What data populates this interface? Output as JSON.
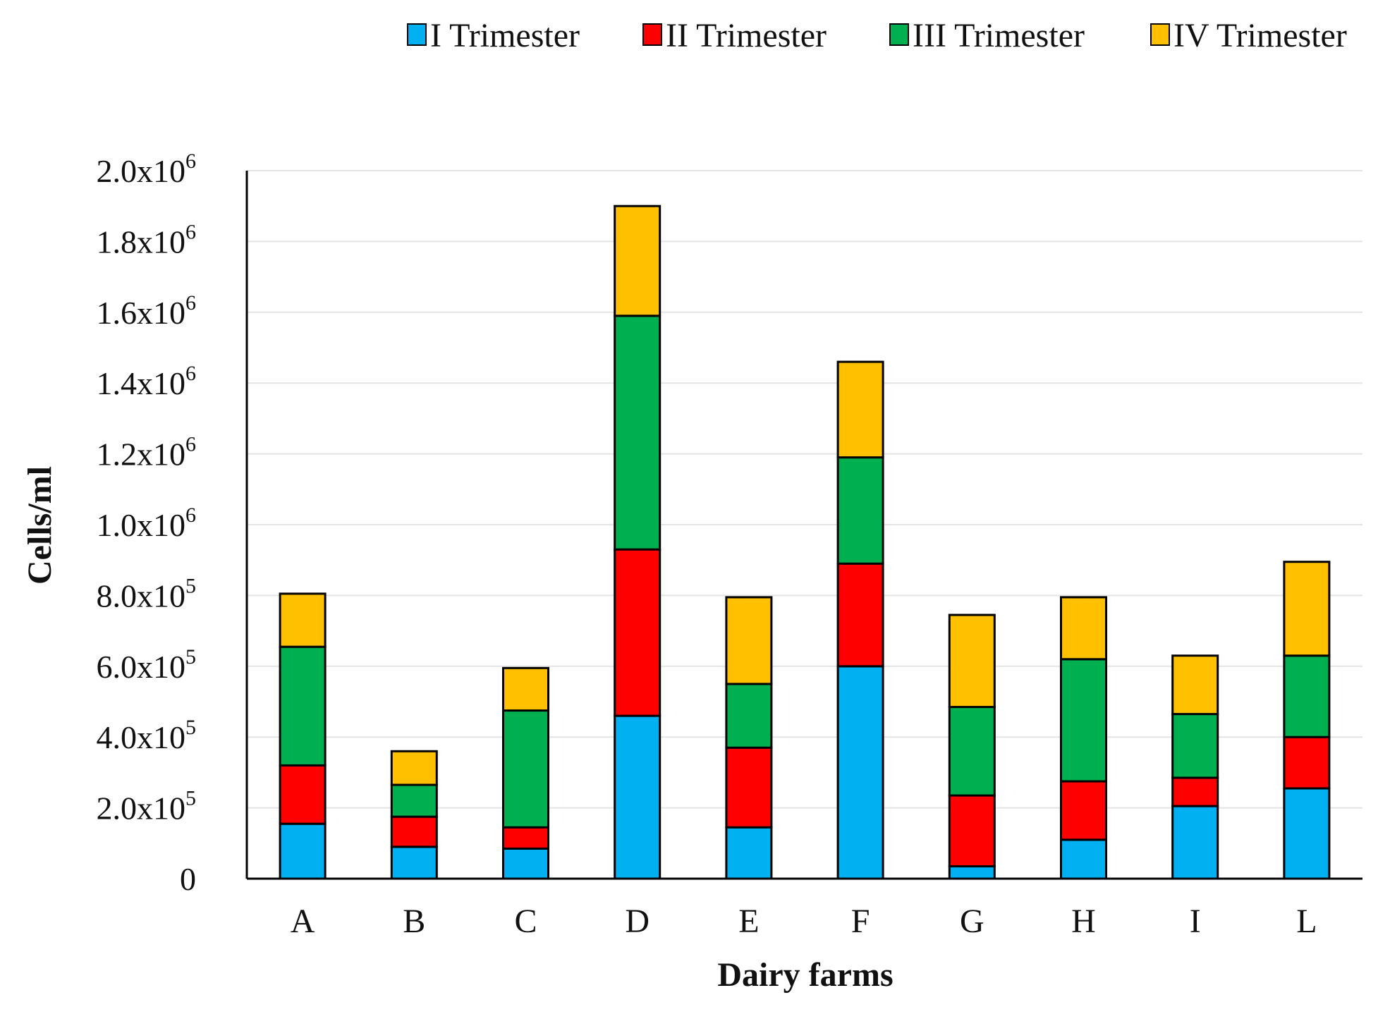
{
  "chart_data": {
    "type": "bar",
    "stacked": true,
    "xlabel": "Dairy farms",
    "ylabel": "Cells/ml",
    "ylim": [
      0,
      2000000
    ],
    "grid": true,
    "legend_position": "top-right",
    "categories": [
      "A",
      "B",
      "C",
      "D",
      "E",
      "F",
      "G",
      "H",
      "I",
      "L"
    ],
    "y_ticks": [
      {
        "value": 0,
        "mantissa": "0",
        "exponent": ""
      },
      {
        "value": 200000,
        "mantissa": "2.0x10",
        "exponent": "5"
      },
      {
        "value": 400000,
        "mantissa": "4.0x10",
        "exponent": "5"
      },
      {
        "value": 600000,
        "mantissa": "6.0x10",
        "exponent": "5"
      },
      {
        "value": 800000,
        "mantissa": "8.0x10",
        "exponent": "5"
      },
      {
        "value": 1000000,
        "mantissa": "1.0x10",
        "exponent": "6"
      },
      {
        "value": 1200000,
        "mantissa": "1.2x10",
        "exponent": "6"
      },
      {
        "value": 1400000,
        "mantissa": "1.4x10",
        "exponent": "6"
      },
      {
        "value": 1600000,
        "mantissa": "1.6x10",
        "exponent": "6"
      },
      {
        "value": 1800000,
        "mantissa": "1.8x10",
        "exponent": "6"
      },
      {
        "value": 2000000,
        "mantissa": "2.0x10",
        "exponent": "6"
      }
    ],
    "series": [
      {
        "name": "I Trimester",
        "color": "#00B0F0",
        "values": [
          155000,
          90000,
          85000,
          460000,
          145000,
          600000,
          35000,
          110000,
          205000,
          255000
        ]
      },
      {
        "name": "II Trimester",
        "color": "#FF0000",
        "values": [
          165000,
          85000,
          60000,
          470000,
          225000,
          290000,
          200000,
          165000,
          80000,
          145000
        ]
      },
      {
        "name": "III Trimester",
        "color": "#00B050",
        "values": [
          335000,
          90000,
          330000,
          660000,
          180000,
          300000,
          250000,
          345000,
          180000,
          230000
        ]
      },
      {
        "name": "IV Trimester",
        "color": "#FFC000",
        "values": [
          150000,
          95000,
          120000,
          310000,
          245000,
          270000,
          260000,
          175000,
          165000,
          265000
        ]
      }
    ]
  }
}
